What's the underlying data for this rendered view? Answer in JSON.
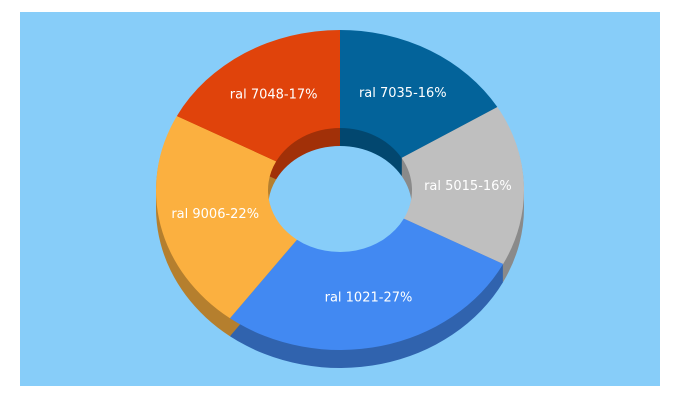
{
  "chart_data": {
    "type": "donut3d",
    "values": [
      16,
      16,
      27,
      22,
      17
    ],
    "value_labels": [
      "ral 7035-16%",
      "ral 5015-16%",
      "ral 1021-27%",
      "ral 9006-22%",
      "ral 7048-17%"
    ],
    "colors": [
      "#03639a",
      "#bfbfbf",
      "#4289f2",
      "#fbb040",
      "#e0430b"
    ]
  }
}
